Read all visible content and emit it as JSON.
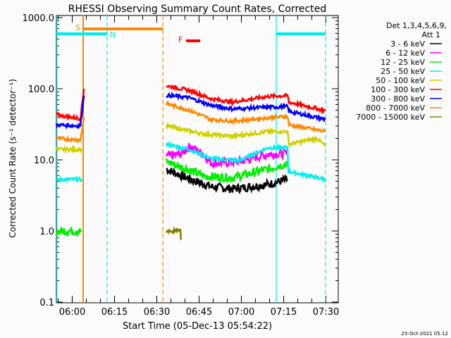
{
  "chart_data": {
    "type": "line",
    "title": "RHESSI Observing Summary Count Rates, Corrected",
    "xlabel": "Start Time (05-Dec-13 05:54:22)",
    "ylabel": "Corrected Count Rate (s⁻¹ detector⁻¹)",
    "x_units": "minutes since 05:54:22",
    "xlim": [
      0,
      100
    ],
    "ylim": [
      0.1,
      1000
    ],
    "yscale": "log",
    "x_ticks": [
      {
        "t": 5.63,
        "label": "06:00"
      },
      {
        "t": 20.63,
        "label": "06:15"
      },
      {
        "t": 35.63,
        "label": "06:30"
      },
      {
        "t": 50.63,
        "label": "06:45"
      },
      {
        "t": 65.63,
        "label": "07:00"
      },
      {
        "t": 80.63,
        "label": "07:15"
      },
      {
        "t": 95.63,
        "label": "07:30"
      }
    ],
    "y_ticks": [
      {
        "v": 1000,
        "label": "1000.0"
      },
      {
        "v": 100,
        "label": "100.0"
      },
      {
        "v": 10,
        "label": "10.0"
      },
      {
        "v": 1,
        "label": "1.0"
      },
      {
        "v": 0.1,
        "label": "0.1"
      }
    ],
    "legend_header": [
      "Det 1,3,4,5,6,9,",
      "Att 1"
    ],
    "legend_position": "right",
    "series": [
      {
        "name": "3 - 6 keV",
        "color": "#000000",
        "segments": [
          [
            [
              39,
              7.4
            ],
            [
              47.5,
              5.3
            ],
            [
              55,
              4.2
            ],
            [
              62.5,
              3.9
            ],
            [
              75,
              4.5
            ],
            [
              82,
              5.3
            ]
          ]
        ]
      },
      {
        "name": "6 - 12 keV",
        "color": "#ff00ff",
        "segments": [
          [
            [
              39,
              11.2
            ],
            [
              44,
              12
            ],
            [
              47.5,
              15.7
            ],
            [
              52,
              12
            ],
            [
              55,
              9.0
            ],
            [
              65,
              9.4
            ],
            [
              75,
              12
            ],
            [
              82,
              12.3
            ]
          ]
        ]
      },
      {
        "name": "12 - 25 keV",
        "color": "#00ee00",
        "segments": [
          [
            [
              0,
              1.0
            ],
            [
              9,
              1.0
            ]
          ],
          [
            [
              39,
              9.4
            ],
            [
              46,
              7.5
            ],
            [
              52.5,
              5.9
            ],
            [
              62.5,
              5.6
            ],
            [
              75,
              7.4
            ],
            [
              82,
              9.0
            ]
          ]
        ]
      },
      {
        "name": "25 - 50 keV",
        "color": "#00eeee",
        "segments": [
          [
            [
              0,
              5.3
            ],
            [
              9,
              5.3
            ]
          ],
          [
            [
              39,
              16.6
            ],
            [
              47,
              14
            ],
            [
              55,
              10.4
            ],
            [
              65,
              9.8
            ],
            [
              75,
              14.8
            ],
            [
              82,
              14.8
            ],
            [
              82.3,
              6.9
            ],
            [
              95.5,
              5.3
            ]
          ]
        ]
      },
      {
        "name": "50 - 100 keV",
        "color": "#d0d000",
        "segments": [
          [
            [
              0,
              14
            ],
            [
              9,
              14
            ]
          ],
          [
            [
              39,
              30
            ],
            [
              52.5,
              23
            ],
            [
              62.5,
              21.5
            ],
            [
              75,
              25
            ],
            [
              82,
              25
            ],
            [
              82.5,
              16.6
            ],
            [
              92.5,
              20
            ],
            [
              95.5,
              15.5
            ]
          ]
        ]
      },
      {
        "name": "100 - 300 keV",
        "color": "#ff0000",
        "segments": [
          [
            [
              0,
              43
            ],
            [
              8.5,
              38
            ],
            [
              9.8,
              100
            ]
          ],
          [
            [
              39,
              110
            ],
            [
              47,
              95
            ],
            [
              55,
              72
            ],
            [
              62.5,
              65
            ],
            [
              75,
              78
            ],
            [
              82,
              80
            ],
            [
              82.5,
              65
            ],
            [
              95.5,
              49
            ]
          ]
        ]
      },
      {
        "name": "300 - 800 keV",
        "color": "#0000ff",
        "segments": [
          [
            [
              0,
              31
            ],
            [
              8.5,
              30
            ],
            [
              9.8,
              80
            ]
          ],
          [
            [
              39,
              81
            ],
            [
              47,
              75
            ],
            [
              55,
              58
            ],
            [
              62.5,
              52
            ],
            [
              75,
              55
            ],
            [
              82,
              56
            ],
            [
              82.5,
              48
            ],
            [
              95.5,
              37
            ]
          ]
        ]
      },
      {
        "name": "800 - 7000 keV",
        "color": "#ff8800",
        "segments": [
          [
            [
              0,
              20
            ],
            [
              8.5,
              19
            ],
            [
              9.8,
              40
            ]
          ],
          [
            [
              39,
              62
            ],
            [
              47,
              50
            ],
            [
              55,
              37
            ],
            [
              62.5,
              35
            ],
            [
              75,
              39
            ],
            [
              82,
              41
            ],
            [
              82.5,
              31
            ],
            [
              95.5,
              25
            ]
          ]
        ]
      },
      {
        "name": "7000 - 15000 keV",
        "color": "#808000",
        "segments": [
          [
            [
              39,
              1.0
            ],
            [
              44,
              1.0
            ],
            [
              44.2,
              0.75
            ]
          ]
        ]
      }
    ],
    "annotations": [
      {
        "label": "S",
        "color": "#ff8800",
        "t_start": 9.5,
        "t_end": 37.8
      },
      {
        "label": "N",
        "color": "#00eeee",
        "t_start": 0,
        "t_end": 18
      },
      {
        "label": "",
        "color": "#00eeee",
        "t_start": 78,
        "t_end": 95.5
      },
      {
        "label": "F",
        "color": "#ff0000",
        "t_start": 46,
        "t_end": 51
      }
    ],
    "vlines": [
      {
        "t": 0.2,
        "color": "#00eeee",
        "style": "solid"
      },
      {
        "t": 9.5,
        "color": "#ff8800",
        "style": "solid"
      },
      {
        "t": 18,
        "color": "#00eeee",
        "style": "dashed"
      },
      {
        "t": 37.8,
        "color": "#ff8800",
        "style": "dashed"
      },
      {
        "t": 78,
        "color": "#00eeee",
        "style": "solid"
      },
      {
        "t": 95.5,
        "color": "#00eeee",
        "style": "dashed"
      }
    ]
  },
  "footer_timestamp": "25-Oct-2021 05:12"
}
